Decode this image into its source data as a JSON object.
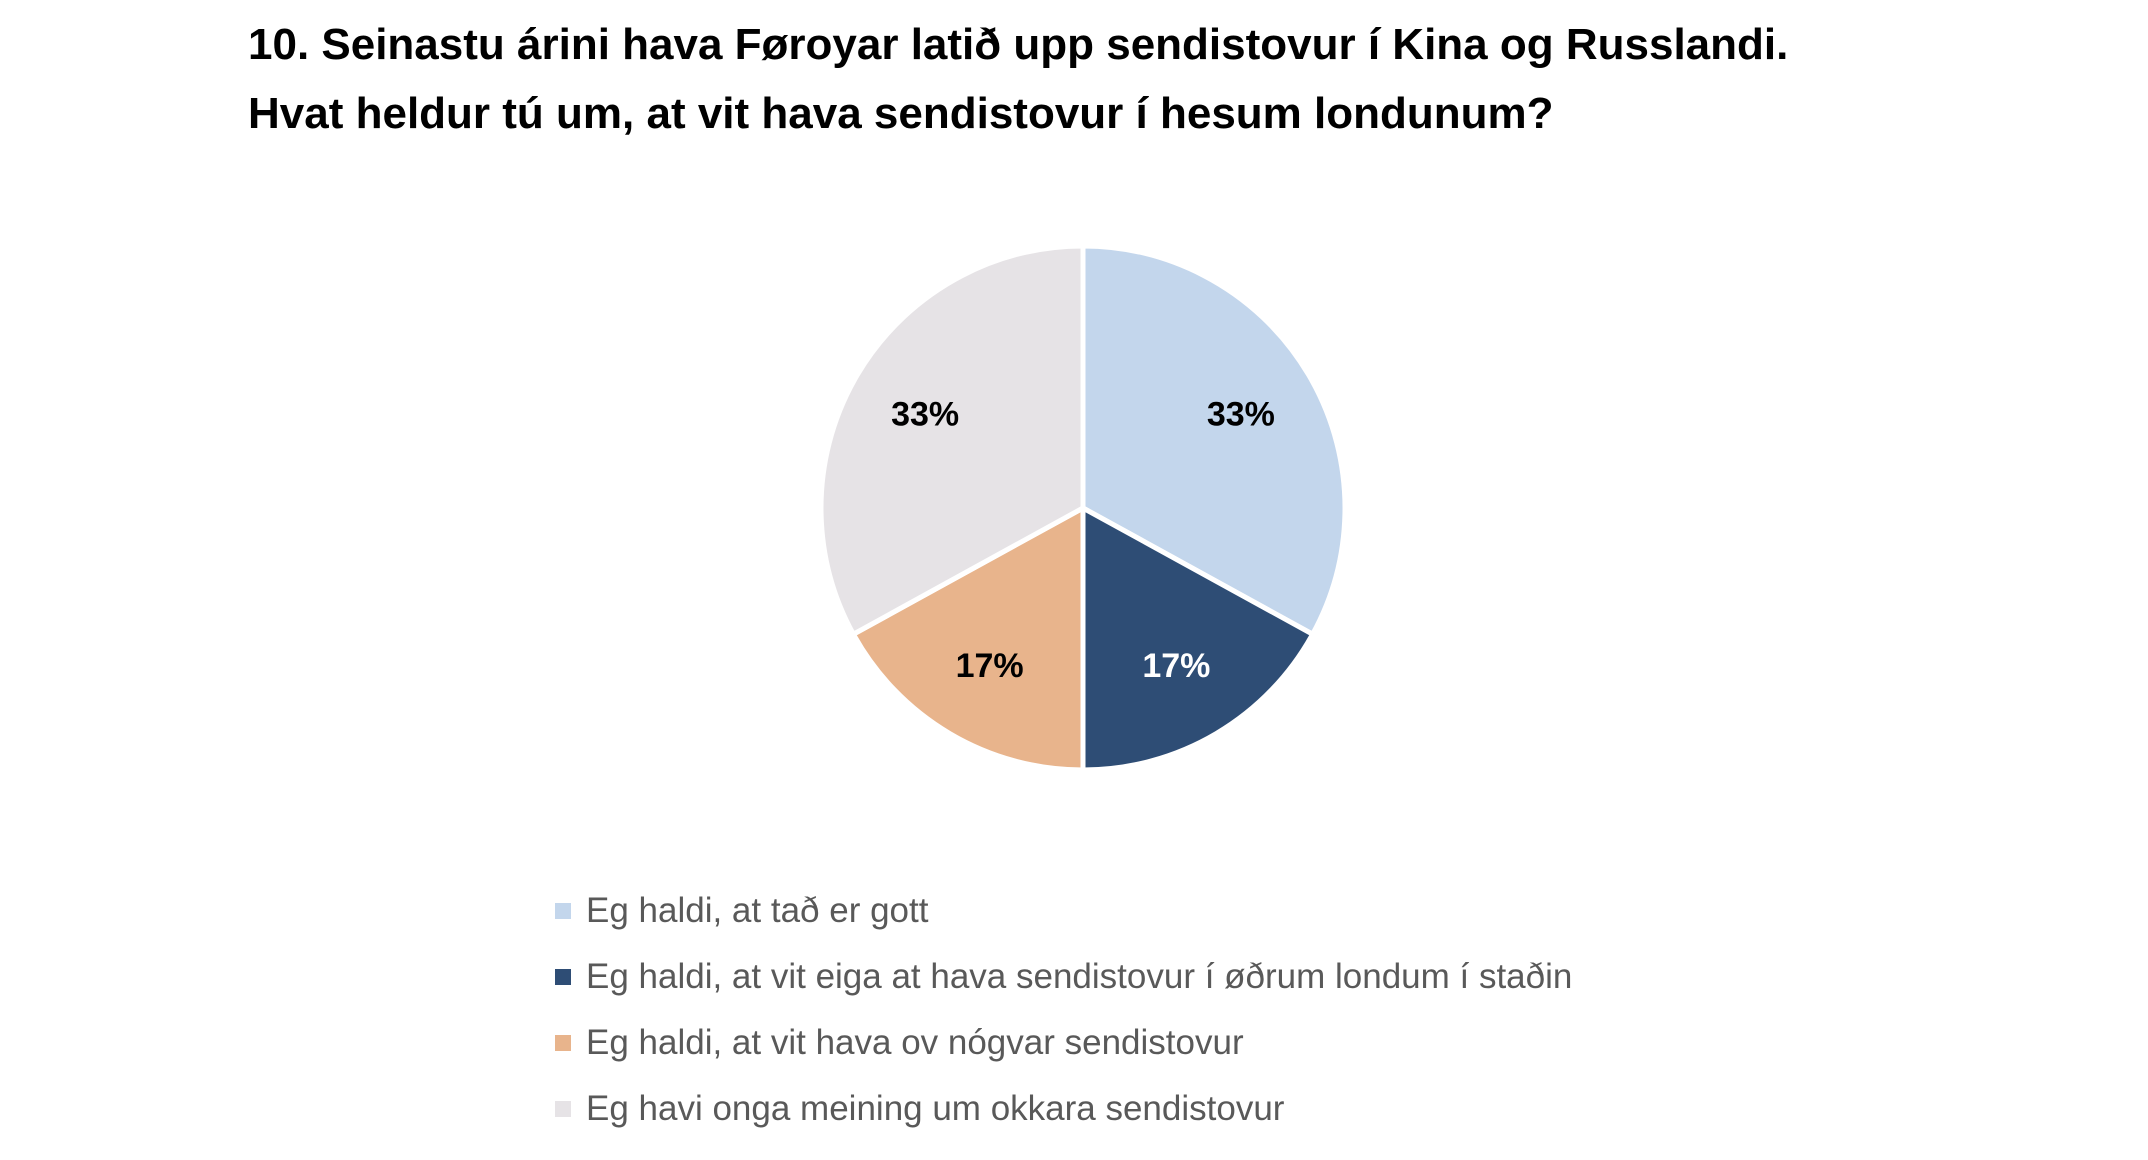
{
  "chart_data": {
    "type": "pie",
    "title_lines": [
      "10. Seinastu árini hava Føroyar latið upp sendistovur í Kina og Russlandi.",
      "Hvat heldur tú um, at vit hava sendistovur í hesum londunum?"
    ],
    "slices": [
      {
        "label": "Eg haldi, at tað er gott",
        "value": 33,
        "display": "33%",
        "color": "#c3d6ec",
        "label_color": "#000000"
      },
      {
        "label": "Eg haldi, at vit eiga at hava sendistovur í øðrum londum í staðin",
        "value": 17,
        "display": "17%",
        "color": "#2e4d75",
        "label_color": "#ffffff"
      },
      {
        "label": "Eg haldi, at vit hava ov nógvar sendistovur",
        "value": 17,
        "display": "17%",
        "color": "#e8b48c",
        "label_color": "#000000"
      },
      {
        "label": "Eg havi onga meining um okkara sendistovur",
        "value": 33,
        "display": "33%",
        "color": "#e6e3e6",
        "label_color": "#000000"
      }
    ],
    "start": "12 o'clock, clockwise",
    "legend_position": "bottom"
  }
}
